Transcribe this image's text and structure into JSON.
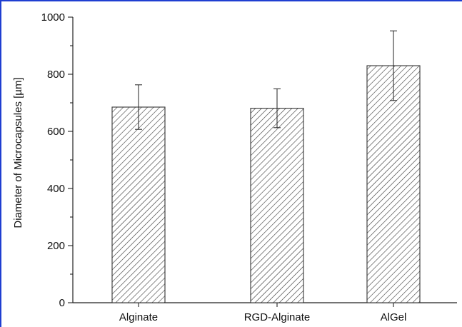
{
  "chart_data": {
    "type": "bar",
    "title": "",
    "xlabel": "",
    "ylabel": "Diameter of Microcapsules [µm]",
    "categories": [
      "Alginate",
      "RGD-Alginate",
      "AlGel"
    ],
    "values": [
      685,
      681,
      830
    ],
    "errors": [
      78,
      68,
      122
    ],
    "ylim": [
      0,
      1000
    ],
    "y_ticks": [
      0,
      200,
      400,
      600,
      800,
      1000
    ],
    "y_tick_labels": [
      "0",
      "200",
      "400",
      "600",
      "800",
      "1000"
    ],
    "grid": false,
    "legend": "none",
    "bar_fill": "hatched",
    "colors": {
      "frame": "#1f3fd1",
      "axis": "#222222",
      "bar_stroke": "#333333",
      "hatch": "#333333"
    }
  }
}
